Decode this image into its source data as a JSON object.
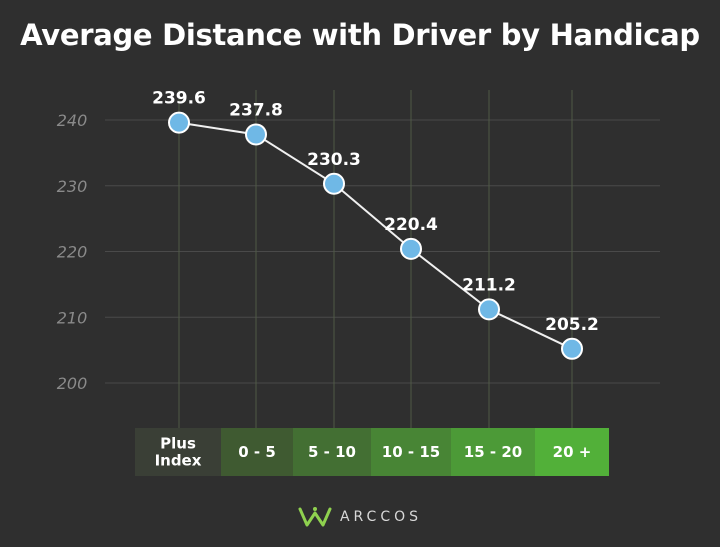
{
  "colors": {
    "background": "#2f2f2f",
    "grid": "#4a4a4a",
    "vgrid": "#4f5a45",
    "line": "#f0f0f0",
    "marker": "#6fb8e6",
    "marker_stroke": "#ffffff",
    "category_fills": [
      "#3a3f36",
      "#3f5a31",
      "#436f33",
      "#488535",
      "#4c9a37",
      "#52b039"
    ]
  },
  "chart_data": {
    "type": "line",
    "title": "Average Distance with Driver by Handicap",
    "xlabel": "",
    "ylabel": "",
    "categories": [
      [
        "Plus",
        "Index"
      ],
      [
        "0 - 5"
      ],
      [
        "5 - 10"
      ],
      [
        "10 - 15"
      ],
      [
        "15 - 20"
      ],
      [
        "20 +"
      ]
    ],
    "series": [
      {
        "values": [
          239.6,
          237.8,
          230.3,
          220.4,
          211.2,
          205.2
        ]
      }
    ],
    "data_labels": [
      "239.6",
      "237.8",
      "230.3",
      "220.4",
      "211.2",
      "205.2"
    ],
    "ylim": [
      200,
      240
    ],
    "yticks": [
      200,
      210,
      220,
      230,
      240
    ],
    "grid": true,
    "legend": "none"
  },
  "logo": {
    "text": "ARCCOS",
    "icon": "crown-w-icon"
  }
}
